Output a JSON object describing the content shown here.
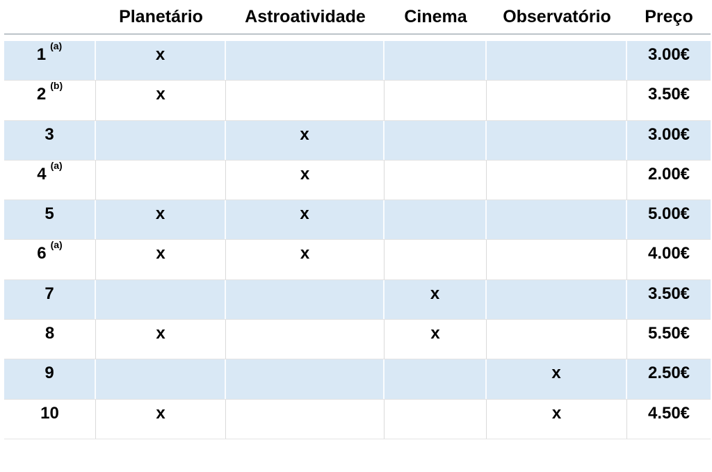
{
  "table": {
    "mark": "x",
    "columns": [
      {
        "key": "label",
        "label": ""
      },
      {
        "key": "planetario",
        "label": "Planetário"
      },
      {
        "key": "astroatividade",
        "label": "Astroatividade"
      },
      {
        "key": "cinema",
        "label": "Cinema"
      },
      {
        "key": "observatorio",
        "label": "Observatório"
      },
      {
        "key": "preco",
        "label": "Preço"
      }
    ],
    "rows": [
      {
        "num": "1",
        "note": "(a)",
        "planetario": true,
        "astroatividade": false,
        "cinema": false,
        "observatorio": false,
        "preco": "3.00€",
        "shaded": true
      },
      {
        "num": "2",
        "note": "(b)",
        "planetario": true,
        "astroatividade": false,
        "cinema": false,
        "observatorio": false,
        "preco": "3.50€",
        "shaded": false
      },
      {
        "num": "3",
        "note": "",
        "planetario": false,
        "astroatividade": true,
        "cinema": false,
        "observatorio": false,
        "preco": "3.00€",
        "shaded": true
      },
      {
        "num": "4",
        "note": "(a)",
        "planetario": false,
        "astroatividade": true,
        "cinema": false,
        "observatorio": false,
        "preco": "2.00€",
        "shaded": false
      },
      {
        "num": "5",
        "note": "",
        "planetario": true,
        "astroatividade": true,
        "cinema": false,
        "observatorio": false,
        "preco": "5.00€",
        "shaded": true
      },
      {
        "num": "6",
        "note": "(a)",
        "planetario": true,
        "astroatividade": true,
        "cinema": false,
        "observatorio": false,
        "preco": "4.00€",
        "shaded": false
      },
      {
        "num": "7",
        "note": "",
        "planetario": false,
        "astroatividade": false,
        "cinema": true,
        "observatorio": false,
        "preco": "3.50€",
        "shaded": true
      },
      {
        "num": "8",
        "note": "",
        "planetario": true,
        "astroatividade": false,
        "cinema": true,
        "observatorio": false,
        "preco": "5.50€",
        "shaded": false
      },
      {
        "num": "9",
        "note": "",
        "planetario": false,
        "astroatividade": false,
        "cinema": false,
        "observatorio": true,
        "preco": "2.50€",
        "shaded": true
      },
      {
        "num": "10",
        "note": "",
        "planetario": true,
        "astroatividade": false,
        "cinema": false,
        "observatorio": true,
        "preco": "4.50€",
        "shaded": false
      }
    ]
  },
  "chart_data": {
    "type": "table",
    "title": "",
    "columns": [
      "",
      "Planetário",
      "Astroatividade",
      "Cinema",
      "Observatório",
      "Preço"
    ],
    "rows": [
      [
        "1 (a)",
        "x",
        "",
        "",
        "",
        "3.00€"
      ],
      [
        "2 (b)",
        "x",
        "",
        "",
        "",
        "3.50€"
      ],
      [
        "3",
        "",
        "x",
        "",
        "",
        "3.00€"
      ],
      [
        "4 (a)",
        "",
        "x",
        "",
        "",
        "2.00€"
      ],
      [
        "5",
        "x",
        "x",
        "",
        "",
        "5.00€"
      ],
      [
        "6 (a)",
        "x",
        "x",
        "",
        "",
        "4.00€"
      ],
      [
        "7",
        "",
        "",
        "x",
        "",
        "3.50€"
      ],
      [
        "8",
        "x",
        "",
        "x",
        "",
        "5.50€"
      ],
      [
        "9",
        "",
        "",
        "",
        "x",
        "2.50€"
      ],
      [
        "10",
        "x",
        "",
        "",
        "x",
        "4.50€"
      ]
    ]
  },
  "colors": {
    "row_shade": "#d9e8f5",
    "divider": "#dadada",
    "divider_on_shade": "rgba(255,255,255,0.85)",
    "header_border": "#bcc3c9",
    "row_border": "#e3e3e3",
    "text": "#000000",
    "background": "#ffffff"
  }
}
